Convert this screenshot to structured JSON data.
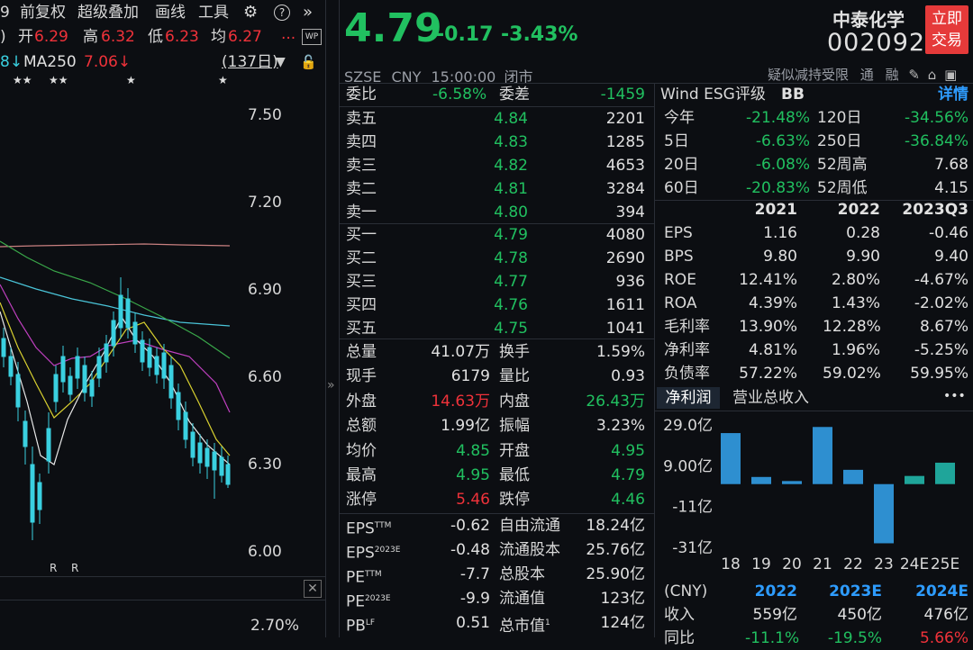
{
  "toolbar": {
    "labels": [
      "前复权",
      "超级叠加",
      "画线",
      "工具"
    ],
    "gear_icon": "gear-icon",
    "help_icon": "help-icon",
    "more_icon": "chevron-double-right-icon",
    "stock_code_fragment": "9"
  },
  "ohlc": {
    "paren": ")",
    "open_label": "开",
    "open": "6.29",
    "high_label": "高",
    "high": "6.32",
    "low_label": "低",
    "low": "6.23",
    "avg_label": "均",
    "avg": "6.27",
    "more": "...",
    "wp_label": "WP"
  },
  "ma": {
    "prefix": "8↓",
    "ma250_label": "MA250",
    "ma250_value": "7.06↓",
    "period": "(137日)"
  },
  "chart": {
    "stars": [
      "★★",
      "★★",
      "★",
      "★"
    ],
    "y_ticks": [
      "7.50",
      "7.20",
      "6.90",
      "6.60",
      "6.30",
      "6.00"
    ],
    "r_marks": [
      "R",
      "R"
    ],
    "pct_label": "2.70%"
  },
  "quote": {
    "price": "4.79",
    "change": "-0.17",
    "change_pct": "-3.43%",
    "name": "中泰化学",
    "code": "002092",
    "trade_button": [
      "立即",
      "交易"
    ],
    "exchange": "SZSE",
    "currency": "CNY",
    "time": "15:00:00",
    "status": "闭市",
    "tags": "疑似减持受限",
    "tag2": "通",
    "tag3": "融"
  },
  "orderbook": {
    "weibi_label": "委比",
    "weibi": "-6.58%",
    "weicha_label": "委差",
    "weicha": "-1459",
    "asks": [
      {
        "label": "卖五",
        "price": "4.84",
        "vol": "2201"
      },
      {
        "label": "卖四",
        "price": "4.83",
        "vol": "1285"
      },
      {
        "label": "卖三",
        "price": "4.82",
        "vol": "4653"
      },
      {
        "label": "卖二",
        "price": "4.81",
        "vol": "3284"
      },
      {
        "label": "卖一",
        "price": "4.80",
        "vol": "394"
      }
    ],
    "bids": [
      {
        "label": "买一",
        "price": "4.79",
        "vol": "4080"
      },
      {
        "label": "买二",
        "price": "4.78",
        "vol": "2690"
      },
      {
        "label": "买三",
        "price": "4.77",
        "vol": "936"
      },
      {
        "label": "买四",
        "price": "4.76",
        "vol": "1611"
      },
      {
        "label": "买五",
        "price": "4.75",
        "vol": "1041"
      }
    ]
  },
  "stats": [
    {
      "l1": "总量",
      "v1": "41.07万",
      "c1": "w",
      "l2": "换手",
      "v2": "1.59%",
      "c2": "w"
    },
    {
      "l1": "现手",
      "v1": "6179",
      "c1": "w",
      "l2": "量比",
      "v2": "0.93",
      "c2": "w"
    },
    {
      "l1": "外盘",
      "v1": "14.63万",
      "c1": "r",
      "l2": "内盘",
      "v2": "26.43万",
      "c2": "g"
    },
    {
      "l1": "总额",
      "v1": "1.99亿",
      "c1": "w",
      "l2": "振幅",
      "v2": "3.23%",
      "c2": "w"
    },
    {
      "l1": "均价",
      "v1": "4.85",
      "c1": "g",
      "l2": "开盘",
      "v2": "4.95",
      "c2": "g"
    },
    {
      "l1": "最高",
      "v1": "4.95",
      "c1": "g",
      "l2": "最低",
      "v2": "4.79",
      "c2": "g"
    },
    {
      "l1": "涨停",
      "v1": "5.46",
      "c1": "r",
      "l2": "跌停",
      "v2": "4.46",
      "c2": "g"
    }
  ],
  "valuation": [
    {
      "l1": "EPS",
      "s1": "TTM",
      "v1": "-0.62",
      "l2": "自由流通",
      "v2": "18.24亿"
    },
    {
      "l1": "EPS",
      "s1": "2023E",
      "v1": "-0.48",
      "l2": "流通股本",
      "v2": "25.76亿"
    },
    {
      "l1": "PE",
      "s1": "TTM",
      "v1": "-7.7",
      "l2": "总股本",
      "v2": "25.90亿"
    },
    {
      "l1": "PE",
      "s1": "2023E",
      "v1": "-9.9",
      "l2": "流通值",
      "v2": "123亿"
    },
    {
      "l1": "PB",
      "s1": "LF",
      "v1": "0.51",
      "l2": "总市值",
      "s2": "1",
      "v2": "124亿"
    }
  ],
  "esg": {
    "label": "Wind ESG评级",
    "rating": "BB",
    "detail": "详情"
  },
  "returns": [
    {
      "l1": "今年",
      "v1": "-21.48%",
      "l2": "120日",
      "v2": "-34.56%",
      "c2": "g"
    },
    {
      "l1": "5日",
      "v1": "-6.63%",
      "l2": "250日",
      "v2": "-36.84%",
      "c2": "g"
    },
    {
      "l1": "20日",
      "v1": "-6.08%",
      "l2": "52周高",
      "v2": "7.68",
      "c2": "w"
    },
    {
      "l1": "60日",
      "v1": "-20.83%",
      "l2": "52周低",
      "v2": "4.15",
      "c2": "w"
    }
  ],
  "fin": {
    "years": [
      "2021",
      "2022",
      "2023Q3"
    ],
    "rows": [
      {
        "label": "EPS",
        "vals": [
          "1.16",
          "0.28",
          "-0.46"
        ]
      },
      {
        "label": "BPS",
        "vals": [
          "9.80",
          "9.90",
          "9.40"
        ]
      },
      {
        "label": "ROE",
        "vals": [
          "12.41%",
          "2.80%",
          "-4.67%"
        ]
      },
      {
        "label": "ROA",
        "vals": [
          "4.39%",
          "1.43%",
          "-2.02%"
        ]
      },
      {
        "label": "毛利率",
        "vals": [
          "13.90%",
          "12.28%",
          "8.67%"
        ]
      },
      {
        "label": "净利率",
        "vals": [
          "4.81%",
          "1.96%",
          "-5.25%"
        ]
      },
      {
        "label": "负债率",
        "vals": [
          "57.22%",
          "59.02%",
          "59.95%"
        ]
      }
    ]
  },
  "tabs": {
    "t1": "净利润",
    "t2": "营业总收入",
    "more": "•••"
  },
  "chart_data": {
    "type": "bar",
    "title": "净利润",
    "categories": [
      "18",
      "19",
      "20",
      "21",
      "22",
      "23",
      "24E",
      "25E"
    ],
    "values": [
      25,
      3.5,
      1.5,
      28,
      7,
      -29,
      4,
      10.5
    ],
    "y_ticks": [
      "29.0亿",
      "9.00亿",
      "-11亿",
      "-31亿"
    ],
    "ylim": [
      -31,
      29
    ],
    "unit": "亿"
  },
  "forecast": {
    "unit": "(CNY)",
    "years": [
      "2022",
      "2023E",
      "2024E"
    ],
    "rev_label": "收入",
    "rev": [
      "559亿",
      "450亿",
      "476亿"
    ],
    "yoy_label": "同比",
    "yoy": [
      "-11.1%",
      "-19.5%",
      "5.66%"
    ]
  },
  "colors": {
    "up": "#f0323a",
    "down": "#21c060",
    "bar": "#2e8fd0",
    "bar_est": "#1fa59a",
    "accent": "#2e9cff"
  }
}
